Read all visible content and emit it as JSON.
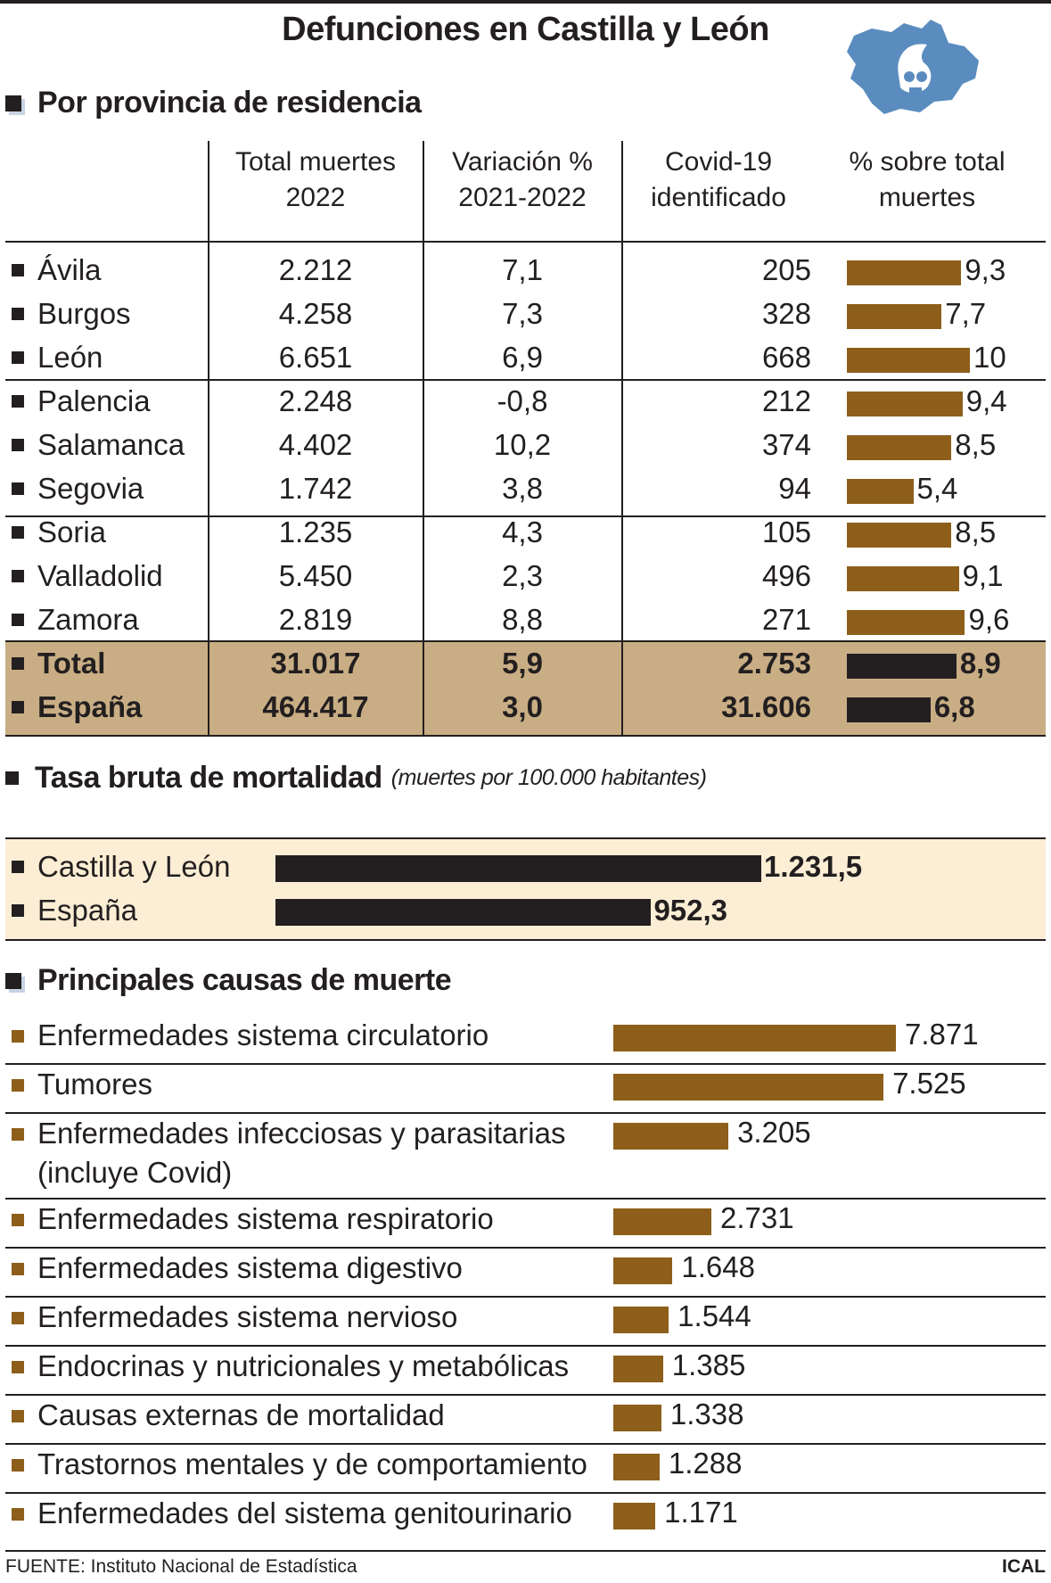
{
  "title": "Defunciones en Castilla y León",
  "logo_icon": "castilla-leon-map-skull-icon",
  "colors": {
    "bar": "#8d5f1b",
    "dark": "#231f20",
    "shade": "#c9ae85",
    "cream": "#fbeed5",
    "map": "#5b8cbf"
  },
  "section1": {
    "heading": "Por provincia de residencia",
    "col_total": [
      "Total muertes",
      "2022"
    ],
    "col_var": [
      "Variación %",
      "2021-2022"
    ],
    "col_covid": [
      "Covid-19",
      "identificado"
    ],
    "col_pct": [
      "% sobre total",
      "muertes"
    ]
  },
  "section2": {
    "heading": "Tasa bruta de mortalidad",
    "subheading": "(muertes por 100.000 habitantes)"
  },
  "section3": {
    "heading": "Principales causas de muerte"
  },
  "chart_data": [
    {
      "type": "table",
      "title": "Por provincia de residencia",
      "columns": [
        "",
        "Total muertes 2022",
        "Variación % 2021-2022",
        "Covid-19 identificado",
        "% sobre total muertes"
      ],
      "rows": [
        {
          "name": "Ávila",
          "total": "2.212",
          "var": "7,1",
          "covid": "205",
          "pct": 9.3,
          "pct_label": "9,3"
        },
        {
          "name": "Burgos",
          "total": "4.258",
          "var": "7,3",
          "covid": "328",
          "pct": 7.7,
          "pct_label": "7,7"
        },
        {
          "name": "León",
          "total": "6.651",
          "var": "6,9",
          "covid": "668",
          "pct": 10,
          "pct_label": "10"
        },
        {
          "name": "Palencia",
          "total": "2.248",
          "var": "-0,8",
          "covid": "212",
          "pct": 9.4,
          "pct_label": "9,4"
        },
        {
          "name": "Salamanca",
          "total": "4.402",
          "var": "10,2",
          "covid": "374",
          "pct": 8.5,
          "pct_label": "8,5"
        },
        {
          "name": "Segovia",
          "total": "1.742",
          "var": "3,8",
          "covid": "94",
          "pct": 5.4,
          "pct_label": "5,4"
        },
        {
          "name": "Soria",
          "total": "1.235",
          "var": "4,3",
          "covid": "105",
          "pct": 8.5,
          "pct_label": "8,5"
        },
        {
          "name": "Valladolid",
          "total": "5.450",
          "var": "2,3",
          "covid": "496",
          "pct": 9.1,
          "pct_label": "9,1"
        },
        {
          "name": "Zamora",
          "total": "2.819",
          "var": "8,8",
          "covid": "271",
          "pct": 9.6,
          "pct_label": "9,6"
        },
        {
          "name": "Total",
          "total": "31.017",
          "var": "5,9",
          "covid": "2.753",
          "pct": 8.9,
          "pct_label": "8,9"
        },
        {
          "name": "España",
          "total": "464.417",
          "var": "3,0",
          "covid": "31.606",
          "pct": 6.8,
          "pct_label": "6,8"
        }
      ]
    },
    {
      "type": "bar",
      "title": "Tasa bruta de mortalidad",
      "categories": [
        "Castilla y León",
        "España"
      ],
      "values": [
        1231.5,
        952.3
      ],
      "labels": [
        "1.231,5",
        "952,3"
      ]
    },
    {
      "type": "bar",
      "title": "Principales causas de muerte",
      "categories": [
        "Enfermedades sistema circulatorio",
        "Tumores",
        "Enfermedades infecciosas y parasitarias (incluye Covid)",
        "Enfermedades sistema respiratorio",
        "Enfermedades sistema digestivo",
        "Enfermedades sistema nervioso",
        "Endocrinas y nutricionales y metabólicas",
        "Causas externas de mortalidad",
        "Trastornos mentales y de comportamiento",
        "Enfermedades del sistema genitourinario"
      ],
      "values": [
        7871,
        7525,
        3205,
        2731,
        1648,
        1544,
        1385,
        1338,
        1288,
        1171
      ],
      "labels": [
        "7.871",
        "7.525",
        "3.205",
        "2.731",
        "1.648",
        "1.544",
        "1.385",
        "1.338",
        "1.288",
        "1.171"
      ]
    }
  ],
  "footer": {
    "source": "FUENTE: Instituto Nacional de Estadística",
    "credit": "ICAL"
  }
}
